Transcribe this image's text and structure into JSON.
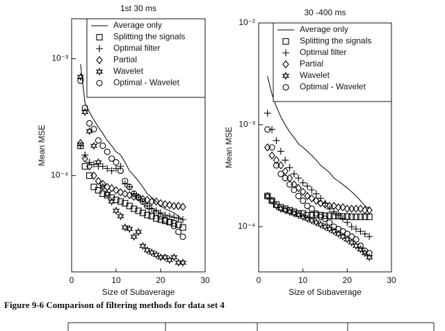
{
  "chart_data": [
    {
      "type": "line",
      "title": "1st 30 ms",
      "xlabel": "Size of Subaverage",
      "ylabel": "Mean MSE",
      "log_y": true,
      "legend": "upper right",
      "color": "#000000",
      "xlim": [
        0,
        30
      ],
      "xticks": [
        0,
        10,
        20,
        30
      ],
      "ylim": [
        1.5e-05,
        0.0022
      ],
      "yticks": [
        {
          "value": 0.0001,
          "label": "10⁻⁴"
        },
        {
          "value": 0.001,
          "label": "10⁻³"
        }
      ],
      "x": [
        2,
        3,
        4,
        5,
        6,
        7,
        8,
        9,
        10,
        11,
        12,
        13,
        14,
        15,
        16,
        17,
        18,
        19,
        20,
        21,
        22,
        23,
        24,
        25
      ],
      "series": [
        {
          "name": "Average only",
          "marker": "line",
          "values": [
            0.0009,
            0.00042,
            0.00035,
            0.0003,
            0.00026,
            0.00023,
            0.0002,
            0.00018,
            0.00016,
            0.00015,
            0.00013,
            0.00011,
            0.0001,
            9e-05,
            8e-05,
            7e-05,
            6.5e-05,
            6e-05,
            5.5e-05,
            5.2e-05,
            5e-05,
            4.8e-05,
            4.5e-05,
            4.2e-05
          ]
        },
        {
          "name": "Splitting the signals",
          "marker": "square",
          "values": [
            0.00018,
            0.00012,
            0.0001,
            8e-05,
            7.5e-05,
            7e-05,
            6.8e-05,
            6.5e-05,
            6.2e-05,
            6e-05,
            5.8e-05,
            5.5e-05,
            5.2e-05,
            5e-05,
            4.8e-05,
            4.6e-05,
            4.5e-05,
            4.3e-05,
            4.2e-05,
            4.1e-05,
            4e-05,
            3.9e-05,
            3.8e-05,
            3.6e-05
          ]
        },
        {
          "name": "Optimal filter",
          "marker": "plus",
          "values": [
            0.00018,
            0.00015,
            0.00013,
            0.000125,
            0.00012,
            0.00012,
            0.000115,
            0.00011,
            0.000115,
            0.00012,
            8.5e-05,
            8e-05,
            7e-05,
            6.5e-05,
            6e-05,
            5.5e-05,
            5.2e-05,
            5e-05,
            4.8e-05,
            4.6e-05,
            4.5e-05,
            4.4e-05,
            4.3e-05,
            4.2e-05
          ]
        },
        {
          "name": "Partial",
          "marker": "diamond",
          "values": [
            0.00019,
            0.00014,
            0.00012,
            0.0001,
            9e-05,
            8.5e-05,
            8e-05,
            7.8e-05,
            7.5e-05,
            7.2e-05,
            7e-05,
            6.8e-05,
            6.6e-05,
            6.5e-05,
            6.3e-05,
            6.2e-05,
            6e-05,
            6e-05,
            5.8e-05,
            5.7e-05,
            5.6e-05,
            5.5e-05,
            5.5e-05,
            5.4e-05
          ]
        },
        {
          "name": "Wavelet",
          "marker": "star",
          "values": [
            0.0007,
            0.00035,
            0.00024,
            0.00018,
            0.00013,
            8e-05,
            7e-05,
            6e-05,
            5e-05,
            4.5e-05,
            3.6e-05,
            3.5e-05,
            3e-05,
            3.3e-05,
            2.5e-05,
            2.3e-05,
            2.2e-05,
            2.1e-05,
            2e-05,
            2e-05,
            1.9e-05,
            2e-05,
            1.8e-05,
            1.8e-05
          ]
        },
        {
          "name": "Optimal - Wavelet",
          "marker": "circle",
          "values": [
            0.00065,
            0.00038,
            0.00028,
            0.00025,
            0.0002,
            0.00018,
            0.00016,
            0.00014,
            0.00013,
            0.00011,
            9e-05,
            8e-05,
            7e-05,
            6.5e-05,
            6e-05,
            5.5e-05,
            5e-05,
            4.8e-05,
            4.5e-05,
            4.2e-05,
            4e-05,
            3.7e-05,
            3.3e-05,
            3e-05
          ]
        }
      ]
    },
    {
      "type": "line",
      "title": "30 -400 ms",
      "xlabel": "Size of Subaverage",
      "ylabel": "Mean MSE",
      "log_y": true,
      "legend": "upper right",
      "color": "#000000",
      "xlim": [
        0,
        30
      ],
      "xticks": [
        0,
        10,
        20,
        30
      ],
      "ylim": [
        3.6e-05,
        0.01
      ],
      "yticks": [
        {
          "value": 0.0001,
          "label": "10⁻⁴"
        },
        {
          "value": 0.001,
          "label": "10⁻³"
        },
        {
          "value": 0.01,
          "label": "10⁻²"
        }
      ],
      "x": [
        2,
        3,
        4,
        5,
        6,
        7,
        8,
        9,
        10,
        11,
        12,
        13,
        14,
        15,
        16,
        17,
        18,
        19,
        20,
        21,
        22,
        23,
        24,
        25
      ],
      "series": [
        {
          "name": "Average only",
          "marker": "line",
          "values": [
            0.003,
            0.002,
            0.0015,
            0.0012,
            0.001,
            0.00085,
            0.00075,
            0.00065,
            0.0006,
            0.00055,
            0.0005,
            0.00045,
            0.0004,
            0.00037,
            0.00034,
            0.0003,
            0.00028,
            0.00026,
            0.00024,
            0.00022,
            0.0002,
            0.00018,
            0.00016,
            0.00015
          ]
        },
        {
          "name": "Splitting the signals",
          "marker": "square",
          "values": [
            0.0002,
            0.00018,
            0.000165,
            0.000155,
            0.00015,
            0.000145,
            0.00014,
            0.000135,
            0.000135,
            0.00013,
            0.00013,
            0.00013,
            0.00013,
            0.000128,
            0.000128,
            0.000127,
            0.000127,
            0.000126,
            0.000126,
            0.000125,
            0.000125,
            0.000125,
            0.000125,
            0.000125
          ]
        },
        {
          "name": "Optimal filter",
          "marker": "plus",
          "values": [
            0.0013,
            0.0009,
            0.0007,
            0.00055,
            0.00045,
            0.00038,
            0.00033,
            0.0003,
            0.00027,
            0.00025,
            0.00023,
            0.00021,
            0.00019,
            0.00017,
            0.00015,
            0.00014,
            0.00013,
            0.00012,
            0.00011,
            0.0001,
            9.5e-05,
            9e-05,
            8.5e-05,
            8e-05
          ]
        },
        {
          "name": "Partial",
          "marker": "diamond",
          "values": [
            0.0006,
            0.0005,
            0.00045,
            0.0004,
            0.00035,
            0.0003,
            0.00026,
            0.00024,
            0.00022,
            0.0002,
            0.00019,
            0.00018,
            0.00017,
            0.000165,
            0.00016,
            0.00016,
            0.000155,
            0.000155,
            0.00015,
            0.00015,
            0.00015,
            0.00015,
            0.000145,
            0.000145
          ]
        },
        {
          "name": "Wavelet",
          "marker": "star",
          "values": [
            0.0002,
            0.00018,
            0.00016,
            0.00015,
            0.000145,
            0.00014,
            0.000135,
            0.00013,
            0.000125,
            0.00012,
            0.000115,
            0.00011,
            0.000105,
            0.0001,
            9.5e-05,
            9e-05,
            8.5e-05,
            8e-05,
            7.5e-05,
            7e-05,
            6.5e-05,
            6e-05,
            5.5e-05,
            5e-05
          ]
        },
        {
          "name": "Optimal - Wavelet",
          "marker": "circle",
          "values": [
            0.0009,
            0.0006,
            0.0004,
            0.00033,
            0.0003,
            0.00026,
            0.00023,
            0.0002,
            0.00018,
            0.00016,
            0.00015,
            0.000135,
            0.000125,
            0.00012,
            0.00011,
            0.0001,
            9.5e-05,
            9e-05,
            8.5e-05,
            8e-05,
            7.5e-05,
            6.5e-05,
            5.8e-05,
            5.5e-05
          ]
        }
      ]
    }
  ],
  "caption": "Figure 9-6 Comparison of filtering methods for data set 4"
}
